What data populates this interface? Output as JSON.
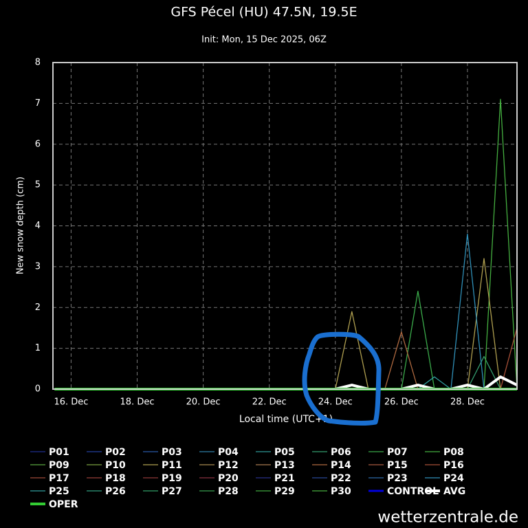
{
  "chart_data": {
    "type": "line",
    "title": "GFS Pécel (HU) 47.5N, 19.5E",
    "subtitle": "Init: Mon, 15 Dec 2025, 06Z",
    "x_label": "Local time (UTC+1)",
    "y_label": "New snow depth (cm)",
    "footer": "wetterzentrale.de",
    "grid": true,
    "x": [
      15.5,
      16,
      16.5,
      17,
      17.5,
      18,
      18.5,
      19,
      19.5,
      20,
      20.5,
      21,
      21.5,
      22,
      22.5,
      23,
      23.5,
      24,
      24.5,
      25,
      25.5,
      26,
      26.5,
      27,
      27.5,
      28,
      28.5,
      29,
      29.5
    ],
    "xlim": [
      15.45,
      29.5
    ],
    "xticks": [
      {
        "value": 16,
        "label": "16. Dec"
      },
      {
        "value": 18,
        "label": "18. Dec"
      },
      {
        "value": 20,
        "label": "20. Dec"
      },
      {
        "value": 22,
        "label": "22. Dec"
      },
      {
        "value": 24,
        "label": "24. Dec"
      },
      {
        "value": 26,
        "label": "26. Dec"
      },
      {
        "value": 28,
        "label": "28. Dec"
      }
    ],
    "ylim": [
      0,
      8
    ],
    "yticks": [
      0,
      1,
      2,
      3,
      4,
      5,
      6,
      7,
      8
    ],
    "series": [
      {
        "name": "P01",
        "color": "#1f2f8f",
        "values": [
          0,
          0,
          0,
          0,
          0,
          0,
          0,
          0,
          0,
          0,
          0,
          0,
          0,
          0,
          0,
          0,
          0,
          0,
          0,
          0,
          0,
          0,
          0,
          0,
          0,
          0,
          0,
          0,
          0
        ]
      },
      {
        "name": "P02",
        "color": "#24409f",
        "values": [
          0,
          0,
          0,
          0,
          0,
          0,
          0,
          0,
          0,
          0,
          0,
          0,
          0,
          0,
          0,
          0,
          0,
          0,
          0,
          0,
          0,
          0,
          0,
          0,
          0,
          0,
          0,
          0,
          0
        ]
      },
      {
        "name": "P03",
        "color": "#2a5aa8",
        "values": [
          0,
          0,
          0,
          0,
          0,
          0,
          0,
          0,
          0,
          0,
          0,
          0,
          0,
          0,
          0,
          0,
          0,
          0,
          0,
          0,
          0,
          0,
          0,
          0,
          0,
          0,
          0,
          0,
          0
        ]
      },
      {
        "name": "P04",
        "color": "#2f7fa8",
        "values": [
          0,
          0,
          0,
          0,
          0,
          0,
          0,
          0,
          0,
          0,
          0,
          0,
          0,
          0,
          0,
          0,
          0,
          0,
          0,
          0,
          0,
          0,
          0,
          0,
          0,
          0,
          0,
          0,
          0
        ]
      },
      {
        "name": "P05",
        "color": "#2f9a98",
        "values": [
          0,
          0,
          0,
          0,
          0,
          0,
          0,
          0,
          0,
          0,
          0,
          0,
          0,
          0,
          0,
          0,
          0,
          0,
          0,
          0,
          0,
          0,
          0,
          0,
          0,
          0,
          0,
          0,
          0
        ]
      },
      {
        "name": "P06",
        "color": "#35a070",
        "values": [
          0,
          0,
          0,
          0,
          0,
          0,
          0,
          0,
          0,
          0,
          0,
          0,
          0,
          0,
          0,
          0,
          0,
          0,
          0,
          0,
          0,
          0,
          0,
          0,
          0,
          0,
          0.8,
          0,
          0
        ]
      },
      {
        "name": "P07",
        "color": "#3aaa4a",
        "values": [
          0,
          0,
          0,
          0,
          0,
          0,
          0,
          0,
          0,
          0,
          0,
          0,
          0,
          0,
          0,
          0,
          0,
          0,
          0,
          0,
          0,
          0,
          2.4,
          0,
          0,
          0,
          0,
          0,
          0
        ]
      },
      {
        "name": "P08",
        "color": "#45b040",
        "values": [
          0,
          0,
          0,
          0,
          0,
          0,
          0,
          0,
          0,
          0,
          0,
          0,
          0,
          0,
          0,
          0,
          0,
          0,
          0,
          0,
          0,
          0,
          0,
          0,
          0,
          0,
          0,
          7.1,
          0
        ]
      },
      {
        "name": "P09",
        "color": "#5aa840",
        "values": [
          0,
          0,
          0,
          0,
          0,
          0,
          0,
          0,
          0,
          0,
          0,
          0,
          0,
          0,
          0,
          0,
          0,
          0,
          0,
          0,
          0,
          0,
          0,
          0,
          0,
          0,
          0,
          0,
          0
        ]
      },
      {
        "name": "P10",
        "color": "#7aa040",
        "values": [
          0,
          0,
          0,
          0,
          0,
          0,
          0,
          0,
          0,
          0,
          0,
          0,
          0,
          0,
          0,
          0,
          0,
          0,
          0,
          0,
          0,
          0,
          0,
          0,
          0,
          0,
          0,
          0,
          0
        ]
      },
      {
        "name": "P11",
        "color": "#b0a050",
        "values": [
          0,
          0,
          0,
          0,
          0,
          0,
          0,
          0,
          0,
          0,
          0,
          0,
          0,
          0,
          0,
          0,
          0,
          0,
          1.9,
          0,
          0,
          0,
          0,
          0,
          0,
          0,
          3.2,
          0,
          0
        ]
      },
      {
        "name": "P12",
        "color": "#a88a50",
        "values": [
          0,
          0,
          0,
          0,
          0,
          0,
          0,
          0,
          0,
          0,
          0,
          0,
          0,
          0,
          0,
          0,
          0,
          0,
          0,
          0,
          0,
          0,
          0,
          0,
          0,
          0,
          0,
          0,
          0
        ]
      },
      {
        "name": "P13",
        "color": "#a87a50",
        "values": [
          0,
          0,
          0,
          0,
          0,
          0,
          0,
          0,
          0,
          0,
          0,
          0,
          0,
          0,
          0,
          0,
          0,
          0,
          0,
          0,
          0,
          0,
          0,
          0,
          0,
          0,
          0,
          0,
          0
        ]
      },
      {
        "name": "P14",
        "color": "#b06a40",
        "values": [
          0,
          0,
          0,
          0,
          0,
          0,
          0,
          0,
          0,
          0,
          0,
          0,
          0,
          0,
          0,
          0,
          0,
          0,
          0,
          0,
          0,
          1.4,
          0,
          0,
          0,
          0,
          0,
          0,
          0
        ]
      },
      {
        "name": "P15",
        "color": "#a85a40",
        "values": [
          0,
          0,
          0,
          0,
          0,
          0,
          0,
          0,
          0,
          0,
          0,
          0,
          0,
          0,
          0,
          0,
          0,
          0,
          0,
          0,
          0,
          0,
          0,
          0,
          0,
          0,
          0,
          0,
          0
        ]
      },
      {
        "name": "P16",
        "color": "#a85038",
        "values": [
          0,
          0,
          0,
          0,
          0,
          0,
          0,
          0,
          0,
          0,
          0,
          0,
          0,
          0,
          0,
          0,
          0,
          0,
          0,
          0,
          0,
          0,
          0,
          0,
          0,
          0,
          0,
          0,
          1.5
        ]
      },
      {
        "name": "P17",
        "color": "#a04a38",
        "values": [
          0,
          0,
          0,
          0,
          0,
          0,
          0,
          0,
          0,
          0,
          0,
          0,
          0,
          0,
          0,
          0,
          0,
          0,
          0,
          0,
          0,
          0,
          0,
          0,
          0,
          0,
          0,
          0,
          0
        ]
      },
      {
        "name": "P18",
        "color": "#983f38",
        "values": [
          0,
          0,
          0,
          0,
          0,
          0,
          0,
          0,
          0,
          0,
          0,
          0,
          0,
          0,
          0,
          0,
          0,
          0,
          0,
          0,
          0,
          0,
          0,
          0,
          0,
          0,
          0,
          0,
          0
        ]
      },
      {
        "name": "P19",
        "color": "#903838",
        "values": [
          0,
          0,
          0,
          0,
          0,
          0,
          0,
          0,
          0,
          0,
          0,
          0,
          0,
          0,
          0,
          0,
          0,
          0,
          0,
          0,
          0,
          0,
          0,
          0,
          0,
          0,
          0,
          0,
          0
        ]
      },
      {
        "name": "P20",
        "color": "#883040",
        "values": [
          0,
          0,
          0,
          0,
          0,
          0,
          0,
          0,
          0,
          0,
          0,
          0,
          0,
          0,
          0,
          0,
          0,
          0,
          0,
          0,
          0,
          0,
          0,
          0,
          0,
          0,
          0,
          0,
          0
        ]
      },
      {
        "name": "P21",
        "color": "#28308a",
        "values": [
          0,
          0,
          0,
          0,
          0,
          0,
          0,
          0,
          0,
          0,
          0,
          0,
          0,
          0,
          0,
          0,
          0,
          0,
          0,
          0,
          0,
          0,
          0,
          0,
          0,
          0,
          0,
          0,
          0
        ]
      },
      {
        "name": "P22",
        "color": "#2a4898",
        "values": [
          0,
          0,
          0,
          0,
          0,
          0,
          0,
          0,
          0,
          0,
          0,
          0,
          0,
          0,
          0,
          0,
          0,
          0,
          0,
          0,
          0,
          0,
          0,
          0,
          0,
          0,
          0,
          0,
          0
        ]
      },
      {
        "name": "P23",
        "color": "#2c68a8",
        "values": [
          0,
          0,
          0,
          0,
          0,
          0,
          0,
          0,
          0,
          0,
          0,
          0,
          0,
          0,
          0,
          0,
          0,
          0,
          0,
          0,
          0,
          0,
          0,
          0,
          0,
          0,
          0,
          0,
          0
        ]
      },
      {
        "name": "P24",
        "color": "#3090b8",
        "values": [
          0,
          0,
          0,
          0,
          0,
          0,
          0,
          0,
          0,
          0,
          0,
          0,
          0,
          0,
          0,
          0,
          0,
          0,
          0,
          0,
          0,
          0,
          0,
          0,
          0,
          3.8,
          0,
          0,
          0
        ]
      },
      {
        "name": "P25",
        "color": "#30a0a0",
        "values": [
          0,
          0,
          0,
          0,
          0,
          0,
          0,
          0,
          0,
          0,
          0,
          0,
          0,
          0,
          0,
          0,
          0,
          0,
          0,
          0,
          0,
          0,
          0,
          0.3,
          0,
          0,
          0,
          0,
          0
        ]
      },
      {
        "name": "P26",
        "color": "#30a080",
        "values": [
          0,
          0,
          0,
          0,
          0,
          0,
          0,
          0,
          0,
          0,
          0,
          0,
          0,
          0,
          0,
          0,
          0,
          0,
          0,
          0,
          0,
          0,
          0,
          0,
          0,
          0,
          0,
          0,
          0
        ]
      },
      {
        "name": "P27",
        "color": "#30a068",
        "values": [
          0,
          0,
          0,
          0,
          0,
          0,
          0,
          0,
          0,
          0,
          0,
          0,
          0,
          0,
          0,
          0,
          0,
          0,
          0,
          0,
          0,
          0,
          0,
          0,
          0,
          0,
          0,
          0,
          0
        ]
      },
      {
        "name": "P28",
        "color": "#38a050",
        "values": [
          0,
          0,
          0,
          0,
          0,
          0,
          0,
          0,
          0,
          0,
          0,
          0,
          0,
          0,
          0,
          0,
          0,
          0,
          0,
          0,
          0,
          0,
          0,
          0,
          0,
          0,
          0,
          0,
          0
        ]
      },
      {
        "name": "P29",
        "color": "#40a840",
        "values": [
          0,
          0,
          0,
          0,
          0,
          0,
          0,
          0,
          0,
          0,
          0,
          0,
          0,
          0,
          0,
          0,
          0,
          0,
          0,
          0,
          0,
          0,
          0,
          0,
          0,
          0,
          0,
          0,
          0
        ]
      },
      {
        "name": "P30",
        "color": "#48b040",
        "values": [
          0,
          0,
          0,
          0,
          0,
          0,
          0,
          0,
          0,
          0,
          0,
          0,
          0,
          0,
          0,
          0,
          0,
          0,
          0,
          0,
          0,
          0,
          0,
          0,
          0,
          0,
          0,
          0,
          0
        ]
      },
      {
        "name": "CONTROL",
        "color": "#0000dd",
        "values": [
          0,
          0,
          0,
          0,
          0,
          0,
          0,
          0,
          0,
          0,
          0,
          0,
          0,
          0,
          0,
          0,
          0,
          0,
          0,
          0,
          0,
          0,
          0,
          0,
          0,
          0,
          0,
          0,
          0
        ]
      },
      {
        "name": "AVG",
        "color": "#ffffff",
        "values": [
          0,
          0,
          0,
          0,
          0,
          0,
          0,
          0,
          0,
          0,
          0,
          0,
          0,
          0,
          0,
          0,
          0,
          0,
          0.1,
          0,
          0,
          0,
          0.1,
          0,
          0,
          0.1,
          0,
          0.3,
          0.1
        ]
      },
      {
        "name": "OPER",
        "color": "#33cc33",
        "values": [
          0,
          0,
          0,
          0,
          0,
          0,
          0,
          0,
          0,
          0,
          0,
          0,
          0,
          0,
          0,
          0,
          0,
          0,
          0,
          0,
          0,
          0,
          0,
          0,
          0,
          0,
          0,
          0,
          0
        ]
      }
    ]
  }
}
